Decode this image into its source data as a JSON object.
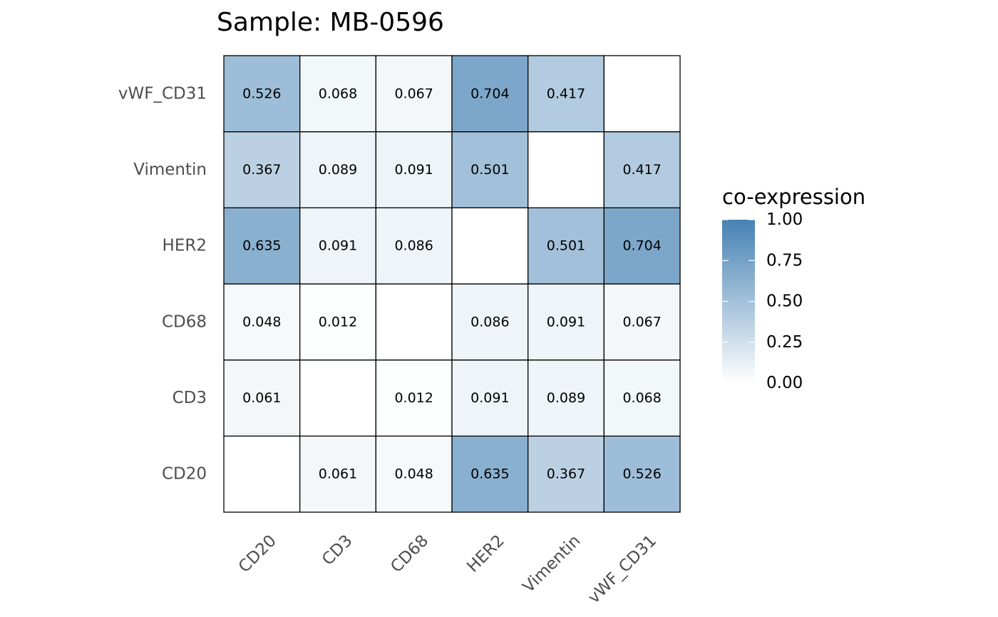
{
  "chart_data": {
    "type": "heatmap",
    "title": "Sample: MB-0596",
    "x_categories": [
      "CD20",
      "CD3",
      "CD68",
      "HER2",
      "Vimentin",
      "vWF_CD31"
    ],
    "y_categories": [
      "CD20",
      "CD3",
      "CD68",
      "HER2",
      "Vimentin",
      "vWF_CD31"
    ],
    "values": [
      [
        null,
        0.061,
        0.048,
        0.635,
        0.367,
        0.526
      ],
      [
        0.061,
        null,
        0.012,
        0.091,
        0.089,
        0.068
      ],
      [
        0.048,
        0.012,
        null,
        0.086,
        0.091,
        0.067
      ],
      [
        0.635,
        0.091,
        0.086,
        null,
        0.501,
        0.704
      ],
      [
        0.367,
        0.089,
        0.091,
        0.501,
        null,
        0.417
      ],
      [
        0.526,
        0.068,
        0.067,
        0.704,
        0.417,
        null
      ]
    ],
    "cell_labels": [
      [
        "",
        "0.061",
        "0.048",
        "0.635",
        "0.367",
        "0.526"
      ],
      [
        "0.061",
        "",
        "0.012",
        "0.091",
        "0.089",
        "0.068"
      ],
      [
        "0.048",
        "0.012",
        "",
        "0.086",
        "0.091",
        "0.067"
      ],
      [
        "0.635",
        "0.091",
        "0.086",
        "",
        "0.501",
        "0.704"
      ],
      [
        "0.367",
        "0.089",
        "0.091",
        "0.501",
        "",
        "0.417"
      ],
      [
        "0.526",
        "0.068",
        "0.067",
        "0.704",
        "0.417",
        ""
      ]
    ],
    "legend": {
      "title": "co-expression",
      "range": [
        0,
        1
      ],
      "ticks": [
        0.0,
        0.25,
        0.5,
        0.75,
        1.0
      ],
      "tick_labels": [
        "0.00",
        "0.25",
        "0.50",
        "0.75",
        "1.00"
      ],
      "low_color": "#ffffff",
      "high_color": "#4682b4"
    }
  }
}
